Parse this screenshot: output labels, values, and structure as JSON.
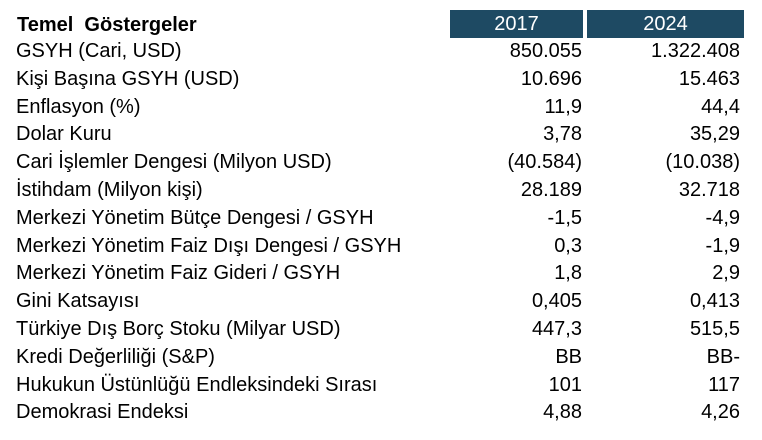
{
  "table": {
    "title": "Temel  Göstergeler",
    "years": [
      "2017",
      "2024"
    ],
    "rows": [
      {
        "label": "GSYH (Cari, USD)",
        "v2017": "850.055",
        "v2024": "1.322.408"
      },
      {
        "label": "Kişi Başına GSYH (USD)",
        "v2017": "10.696",
        "v2024": "15.463"
      },
      {
        "label": "Enflasyon (%)",
        "v2017": "11,9",
        "v2024": "44,4"
      },
      {
        "label": "Dolar Kuru",
        "v2017": "3,78",
        "v2024": "35,29"
      },
      {
        "label": "Cari İşlemler Dengesi (Milyon USD)",
        "v2017": "(40.584)",
        "v2024": "(10.038)"
      },
      {
        "label": "İstihdam (Milyon kişi)",
        "v2017": "28.189",
        "v2024": "32.718"
      },
      {
        "label": "Merkezi Yönetim Bütçe Dengesi / GSYH",
        "v2017": "-1,5",
        "v2024": "-4,9"
      },
      {
        "label": "Merkezi Yönetim Faiz Dışı Dengesi / GSYH",
        "v2017": "0,3",
        "v2024": "-1,9"
      },
      {
        "label": "Merkezi Yönetim Faiz Gideri / GSYH",
        "v2017": "1,8",
        "v2024": "2,9"
      },
      {
        "label": "Gini Katsayısı",
        "v2017": "0,405",
        "v2024": "0,413"
      },
      {
        "label": "Türkiye Dış Borç Stoku (Milyar USD)",
        "v2017": "447,3",
        "v2024": "515,5"
      },
      {
        "label": "Kredi Değerliliği (S&P)",
        "v2017": "BB",
        "v2024": "BB-"
      },
      {
        "label": "Hukukun Üstünlüğü Endleksindeki Sırası",
        "v2017": "101",
        "v2024": "117"
      },
      {
        "label": "Demokrasi Endeksi",
        "v2017": "4,88",
        "v2024": "4,26"
      }
    ]
  },
  "colors": {
    "header_bg": "#1e4a63",
    "header_text": "#ffffff",
    "text": "#000000"
  }
}
